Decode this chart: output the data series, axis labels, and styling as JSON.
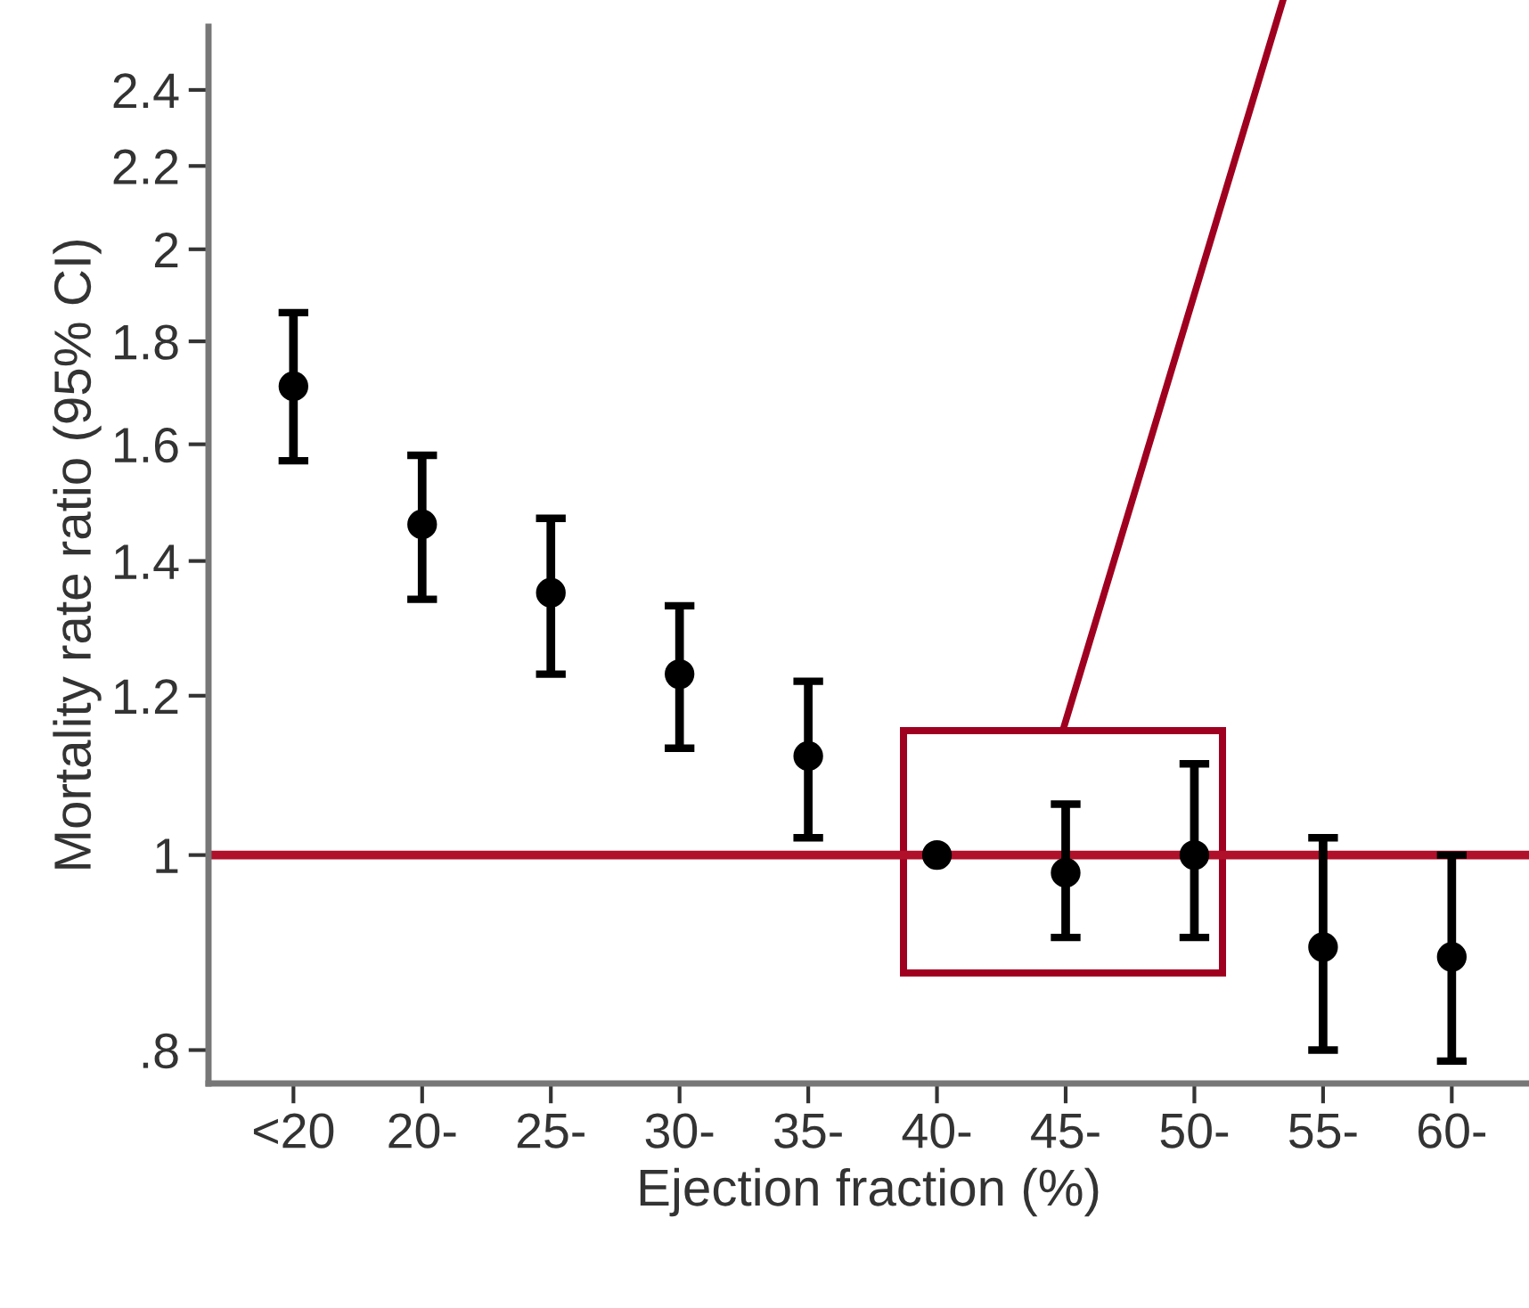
{
  "chart_data": {
    "type": "scatter",
    "xlabel": "Ejection fraction (%)",
    "ylabel": "Mortality rate ratio (95% CI)",
    "categories": [
      "<20",
      "20-",
      "25-",
      "30-",
      "35-",
      "40-",
      "45-",
      "50-",
      "55-",
      "60-"
    ],
    "series": [
      {
        "color": "#000000",
        "values": [
          1.71,
          1.46,
          1.35,
          1.23,
          1.12,
          1.0,
          0.98,
          1.0,
          0.9,
          0.89
        ],
        "errors": [
          [
            1.57,
            1.86
          ],
          [
            1.34,
            1.58
          ],
          [
            1.23,
            1.47
          ],
          [
            1.13,
            1.33
          ],
          [
            1.02,
            1.22
          ],
          null,
          [
            0.91,
            1.06
          ],
          [
            0.91,
            1.11
          ],
          [
            0.8,
            1.02
          ],
          [
            0.79,
            1.0
          ]
        ]
      }
    ],
    "log": true,
    "ylim": [
      0.77,
      2.58
    ],
    "yticks": [
      {
        "value": 0.8,
        "label": ".8"
      },
      1,
      1.2,
      1.4,
      1.6,
      1.8,
      2,
      2.2,
      2.4
    ],
    "ref_lines": [
      {
        "axis": "y",
        "value": 1,
        "color": "#b0102a"
      }
    ],
    "marker": "circle",
    "grid": false,
    "legend": false
  }
}
